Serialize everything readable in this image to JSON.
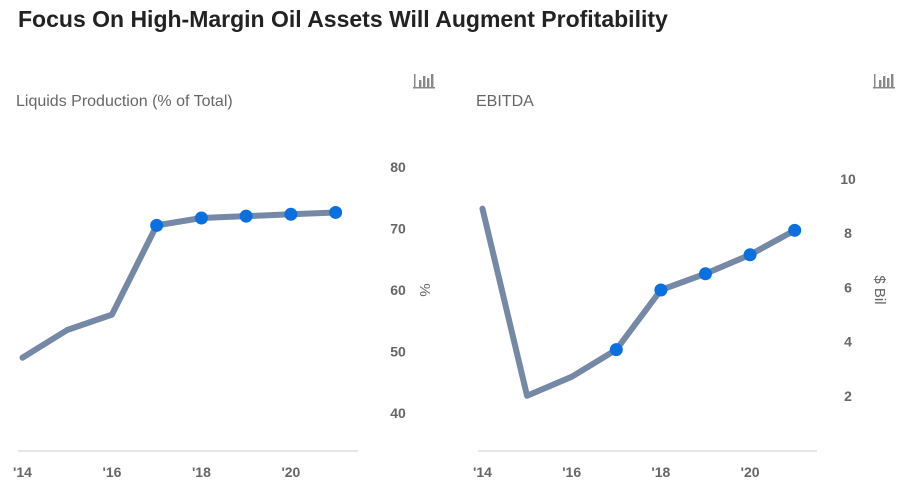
{
  "page": {
    "title": "Focus On High-Margin Oil Assets Will Augment Profitability"
  },
  "colors": {
    "line": "#7588a5",
    "marker": "#0a6fdf",
    "axis": "#cccccc",
    "text": "#666666"
  },
  "icons": {
    "chart_menu": "bar-chart-icon"
  },
  "chart_data": [
    {
      "type": "line",
      "title": "Liquids Production (% of Total)",
      "xlabel": "",
      "ylabel": "%",
      "x": [
        2014,
        2015,
        2016,
        2017,
        2018,
        2019,
        2020,
        2021
      ],
      "xticks": [
        2014,
        2016,
        2018,
        2020
      ],
      "xtick_labels": [
        "'14",
        "'16",
        "'18",
        "'20"
      ],
      "xlim": [
        2013.9,
        2021.5
      ],
      "series": [
        {
          "values": [
            49.0,
            53.5,
            56.0,
            70.5,
            71.7,
            72.0,
            72.3,
            72.6
          ]
        }
      ],
      "markers_from_index": 3,
      "ylim": [
        34,
        86
      ],
      "yticks": [
        40,
        50,
        60,
        70,
        80
      ],
      "ytick_labels": [
        "40",
        "50",
        "60",
        "70",
        "80"
      ],
      "y_axis_side": "right",
      "grid": false
    },
    {
      "type": "line",
      "title": "EBITDA",
      "xlabel": "",
      "ylabel": "$ Bil",
      "x": [
        2014,
        2015,
        2016,
        2017,
        2018,
        2019,
        2020,
        2021
      ],
      "xticks": [
        2014,
        2016,
        2018,
        2020
      ],
      "xtick_labels": [
        "'14",
        "'16",
        "'18",
        "'20"
      ],
      "xlim": [
        2013.9,
        2021.5
      ],
      "series": [
        {
          "values": [
            8.9,
            2.0,
            2.7,
            3.7,
            5.9,
            6.5,
            7.2,
            8.1
          ]
        }
      ],
      "markers_from_index": 3,
      "ylim": [
        0,
        11.8
      ],
      "yticks": [
        2,
        4,
        6,
        8,
        10
      ],
      "ytick_labels": [
        "2",
        "4",
        "6",
        "8",
        "10"
      ],
      "y_axis_side": "right",
      "grid": false
    }
  ]
}
